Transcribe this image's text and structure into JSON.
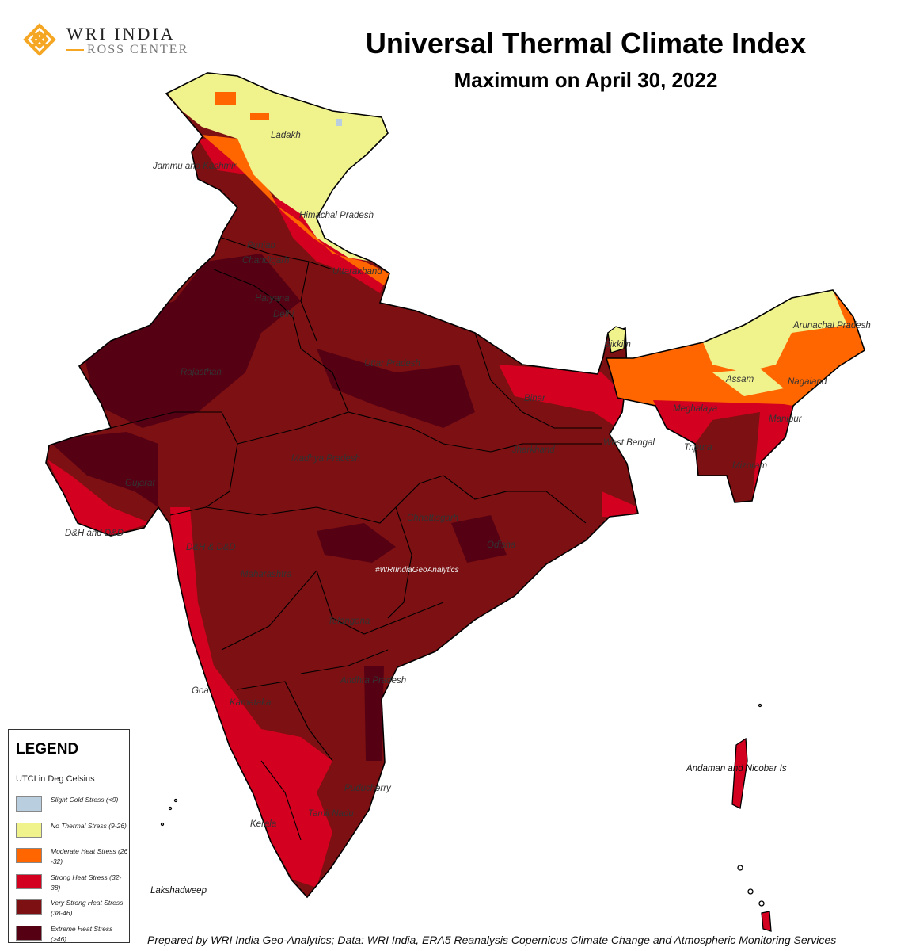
{
  "logo": {
    "line1": "WRI INDIA",
    "line2": "ROSS CENTER",
    "color": "#f5a623"
  },
  "header": {
    "title": "Universal Thermal Climate Index",
    "subtitle": "Maximum on April 30, 2022"
  },
  "watermark": "#WRIIndiaGeoAnalytics",
  "map_labels": [
    "Ladakh",
    "Jammu and Kashmir",
    "Himachal Pradesh",
    "Punjab",
    "Chandigarh",
    "Uttarakhand",
    "Haryana",
    "Delhi",
    "Rajasthan",
    "Uttar Pradesh",
    "Bihar",
    "Sikkim",
    "Arunachal Pradesh",
    "Assam",
    "Nagaland",
    "Meghalaya",
    "Manipur",
    "West Bengal",
    "Tripura",
    "Mizoram",
    "Jharkhand",
    "Madhya Pradesh",
    "Gujarat",
    "D&H and D&D",
    "D&H & D&D",
    "Maharashtra",
    "Chhattisgarh",
    "Odisha",
    "Telangana",
    "Andhra Pradesh",
    "Goa",
    "Karnataka",
    "Puducherry",
    "Tamil Nadu",
    "Kerala",
    "Lakshadweep",
    "Andaman and Nicobar Is"
  ],
  "legend": {
    "title": "LEGEND",
    "subtitle": "UTCI in Deg Celsius",
    "items": [
      {
        "label": "Slight Cold Stress (<9)",
        "color": "#b9cfe0"
      },
      {
        "label": "No Thermal Stress (9-26)",
        "color": "#f0f28c"
      },
      {
        "label": "Moderate Heat Stress (26 -32)",
        "color": "#ff6600"
      },
      {
        "label": "Strong Heat Stress (32-38)",
        "color": "#d4001f"
      },
      {
        "label": "Very Strong Heat Stress (38-46)",
        "color": "#7d1012"
      },
      {
        "label": "Extreme Heat Stress (>46)",
        "color": "#560014"
      }
    ]
  },
  "credit": "Prepared by WRI India Geo-Analytics; Data: WRI India, ERA5 Reanalysis Copernicus Climate Change and Atmospheric Monitoring Services"
}
